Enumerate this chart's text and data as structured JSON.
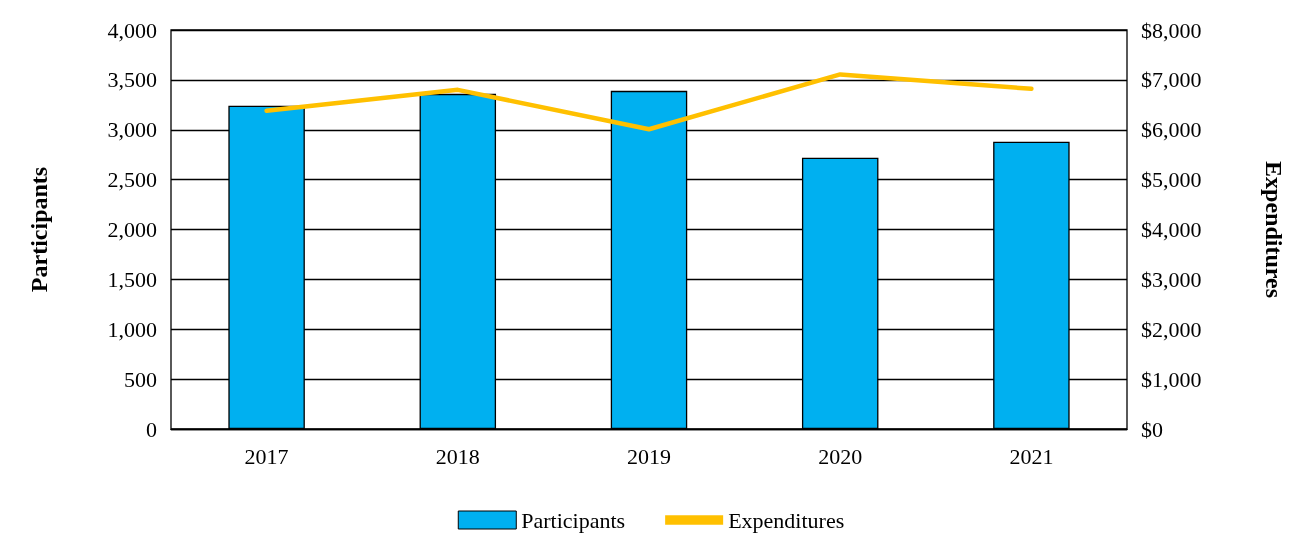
{
  "chart_data": {
    "type": "bar",
    "categories": [
      "2017",
      "2018",
      "2019",
      "2020",
      "2021"
    ],
    "series": [
      {
        "name": "Participants",
        "color": "#00b0f0",
        "values": [
          3240,
          3360,
          3390,
          2720,
          2880
        ]
      },
      {
        "name": "Expenditures",
        "type": "line",
        "axis": "y2",
        "color": "#ffc000",
        "values": [
          6380,
          6800,
          6010,
          7110,
          6820
        ]
      }
    ],
    "ylabel": "Participants",
    "y2label": "Expenditures",
    "ylim": [
      0,
      4000
    ],
    "yticks": [
      0,
      500,
      {
        "value": 1000,
        "label": "1,000"
      },
      {
        "value": 1500,
        "label": "1,500"
      },
      {
        "value": 2000,
        "label": "2,000"
      },
      {
        "value": 2500,
        "label": "2,500"
      },
      {
        "value": 3000,
        "label": "3,000"
      },
      {
        "value": 3500,
        "label": "3,500"
      },
      {
        "value": 4000,
        "label": "4,000"
      }
    ],
    "y2lim": [
      0,
      8000
    ],
    "y2ticks": [
      {
        "value": 0,
        "label": "$0"
      },
      {
        "value": 1000,
        "label": "$1,000"
      },
      {
        "value": 2000,
        "label": "$2,000"
      },
      {
        "value": 3000,
        "label": "$3,000"
      },
      {
        "value": 4000,
        "label": "$4,000"
      },
      {
        "value": 5000,
        "label": "$5,000"
      },
      {
        "value": 6000,
        "label": "$6,000"
      },
      {
        "value": 7000,
        "label": "$7,000"
      },
      {
        "value": 8000,
        "label": "$8,000"
      }
    ],
    "grid": "y",
    "legend": "bottom",
    "marker": "none",
    "line_style": "solid"
  }
}
